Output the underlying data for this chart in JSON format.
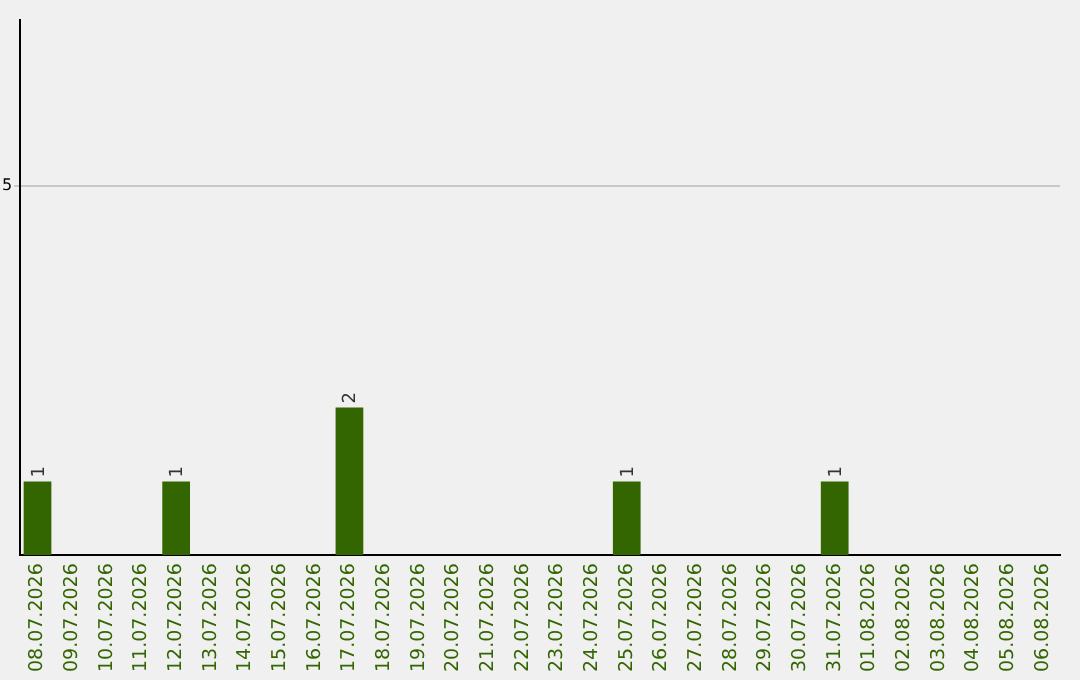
{
  "chart_data": {
    "type": "bar",
    "categories": [
      "08.07.2026",
      "09.07.2026",
      "10.07.2026",
      "11.07.2026",
      "12.07.2026",
      "13.07.2026",
      "14.07.2026",
      "15.07.2026",
      "16.07.2026",
      "17.07.2026",
      "18.07.2026",
      "19.07.2026",
      "20.07.2026",
      "21.07.2026",
      "22.07.2026",
      "23.07.2026",
      "24.07.2026",
      "25.07.2026",
      "26.07.2026",
      "27.07.2026",
      "28.07.2026",
      "29.07.2026",
      "30.07.2026",
      "31.07.2026",
      "01.08.2026",
      "02.08.2026",
      "03.08.2026",
      "04.08.2026",
      "05.08.2026",
      "06.08.2026"
    ],
    "values": [
      1,
      0,
      0,
      0,
      1,
      0,
      0,
      0,
      0,
      2,
      0,
      0,
      0,
      0,
      0,
      0,
      0,
      1,
      0,
      0,
      0,
      0,
      0,
      1,
      0,
      0,
      0,
      0,
      0,
      0
    ],
    "value_labels": [
      "1",
      null,
      null,
      null,
      "1",
      null,
      null,
      null,
      null,
      "2",
      null,
      null,
      null,
      null,
      null,
      null,
      null,
      "1",
      null,
      null,
      null,
      null,
      null,
      "1",
      null,
      null,
      null,
      null,
      null,
      null
    ],
    "color": "#336600",
    "ylim": [
      0,
      7.25
    ],
    "yticks": [
      5
    ],
    "grid": "y",
    "legend": false
  }
}
